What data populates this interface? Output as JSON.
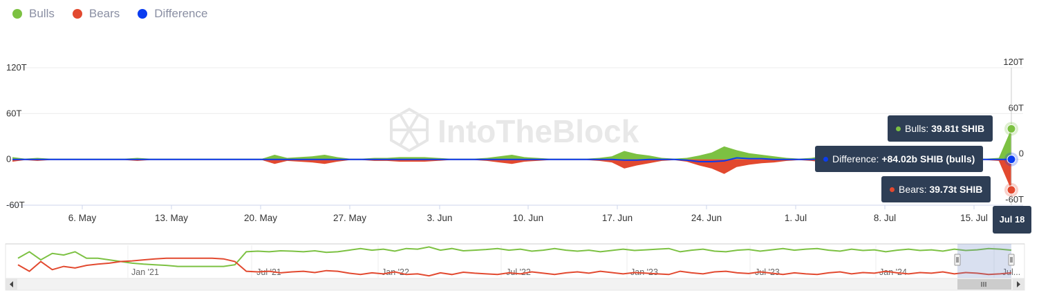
{
  "legend": [
    {
      "label": "Bulls",
      "color": "#7cc142"
    },
    {
      "label": "Bears",
      "color": "#e2492f"
    },
    {
      "label": "Difference",
      "color": "#0a3cf0"
    }
  ],
  "watermark": "IntoTheBlock",
  "chart_data": {
    "type": "area",
    "x_ticks": [
      "6. May",
      "13. May",
      "20. May",
      "27. May",
      "3. Jun",
      "10. Jun",
      "17. Jun",
      "24. Jun",
      "1. Jul",
      "8. Jul",
      "15. Jul"
    ],
    "y_ticks_left": [
      "120T",
      "60T",
      "0",
      "-60T"
    ],
    "y_ticks_right": [
      "120T",
      "60T",
      "0",
      "-60T"
    ],
    "ylim": [
      -60,
      120
    ],
    "y_unit": "T",
    "x_range": [
      "Apr 30",
      "Jul 18"
    ],
    "series": [
      {
        "name": "Bulls",
        "color": "#7cc142",
        "values": [
          3,
          1,
          2,
          1,
          1,
          1,
          1,
          1,
          1,
          1,
          2,
          1,
          1,
          1,
          1,
          1,
          1,
          1,
          1,
          1,
          1,
          6,
          2,
          3,
          4,
          6,
          3,
          1,
          1,
          2,
          2,
          3,
          3,
          3,
          2,
          1,
          1,
          1,
          2,
          4,
          6,
          3,
          2,
          1,
          1,
          1,
          1,
          2,
          4,
          11,
          7,
          5,
          2,
          1,
          2,
          5,
          9,
          17,
          12,
          8,
          6,
          4,
          2,
          1,
          2,
          5,
          6,
          3,
          2,
          1,
          1,
          3,
          6,
          3,
          2,
          1,
          1,
          1,
          1,
          2,
          40
        ]
      },
      {
        "name": "Bears",
        "color": "#e2492f",
        "values": [
          -3,
          -1,
          -2,
          -1,
          -1,
          -1,
          -1,
          -1,
          -1,
          -1,
          -2,
          -1,
          -1,
          -1,
          -1,
          -1,
          -1,
          -1,
          -1,
          -1,
          -1,
          -6,
          -2,
          -3,
          -4,
          -6,
          -3,
          -1,
          -1,
          -2,
          -2,
          -3,
          -3,
          -3,
          -2,
          -1,
          -1,
          -1,
          -2,
          -4,
          -6,
          -3,
          -2,
          -1,
          -1,
          -1,
          -1,
          -2,
          -4,
          -12,
          -8,
          -5,
          -2,
          -1,
          -3,
          -8,
          -12,
          -19,
          -10,
          -7,
          -5,
          -4,
          -2,
          -1,
          -2,
          -4,
          -5,
          -3,
          -2,
          -1,
          -1,
          -2,
          -4,
          -2,
          -1,
          -1,
          -1,
          -1,
          -1,
          -2,
          -40
        ]
      },
      {
        "name": "Difference",
        "color": "#0a3cf0",
        "values": [
          0,
          0,
          0,
          0,
          0,
          0,
          0,
          0,
          0,
          0,
          0,
          0,
          0,
          0,
          0,
          0,
          0,
          0,
          0,
          0,
          0,
          0,
          0,
          0,
          0,
          0,
          0,
          0,
          0,
          0,
          0,
          0,
          0,
          0,
          0,
          0,
          0,
          0,
          0,
          0,
          0,
          0,
          0,
          0,
          0,
          0,
          0,
          0,
          0,
          -1,
          -1,
          0,
          0,
          0,
          -1,
          -3,
          -3,
          -2,
          2,
          1,
          1,
          0,
          0,
          0,
          0,
          1,
          1,
          0,
          0,
          0,
          0,
          1,
          2,
          1,
          1,
          0,
          0,
          0,
          0,
          0,
          0.08
        ]
      }
    ],
    "navigator": {
      "x_ticks": [
        "Jan '21",
        "Jul '21",
        "Jan '22",
        "Jul '22",
        "Jan '23",
        "Jul '23",
        "Jan '24",
        "Jul..."
      ],
      "bulls": [
        0.6,
        0.8,
        0.55,
        0.75,
        0.7,
        0.8,
        0.6,
        0.6,
        0.55,
        0.5,
        0.45,
        0.42,
        0.4,
        0.38,
        0.35,
        0.35,
        0.35,
        0.35,
        0.35,
        0.4,
        0.8,
        0.82,
        0.8,
        0.83,
        0.82,
        0.8,
        0.83,
        0.78,
        0.8,
        0.85,
        0.9,
        0.85,
        0.88,
        0.82,
        0.9,
        0.88,
        0.95,
        0.85,
        0.9,
        0.83,
        0.85,
        0.87,
        0.9,
        0.85,
        0.88,
        0.82,
        0.85,
        0.9,
        0.85,
        0.82,
        0.85,
        0.8,
        0.84,
        0.88,
        0.84,
        0.86,
        0.88,
        0.9,
        0.8,
        0.85,
        0.88,
        0.82,
        0.8,
        0.85,
        0.87,
        0.82,
        0.86,
        0.9,
        0.85,
        0.88,
        0.9,
        0.85,
        0.82,
        0.88,
        0.84,
        0.86,
        0.8,
        0.85,
        0.88,
        0.84,
        0.86,
        0.82,
        0.88,
        0.84,
        0.86,
        0.9,
        0.88,
        0.85
      ],
      "bears": [
        0.4,
        0.2,
        0.5,
        0.25,
        0.35,
        0.3,
        0.38,
        0.42,
        0.45,
        0.5,
        0.52,
        0.55,
        0.58,
        0.6,
        0.6,
        0.6,
        0.6,
        0.6,
        0.58,
        0.5,
        0.2,
        0.18,
        0.2,
        0.15,
        0.18,
        0.2,
        0.16,
        0.22,
        0.2,
        0.14,
        0.1,
        0.15,
        0.12,
        0.18,
        0.1,
        0.12,
        0.06,
        0.15,
        0.1,
        0.17,
        0.14,
        0.12,
        0.1,
        0.15,
        0.12,
        0.18,
        0.14,
        0.1,
        0.15,
        0.18,
        0.14,
        0.2,
        0.16,
        0.12,
        0.16,
        0.14,
        0.12,
        0.1,
        0.2,
        0.15,
        0.12,
        0.18,
        0.2,
        0.15,
        0.13,
        0.18,
        0.14,
        0.1,
        0.15,
        0.12,
        0.1,
        0.15,
        0.18,
        0.12,
        0.16,
        0.14,
        0.2,
        0.15,
        0.12,
        0.16,
        0.14,
        0.18,
        0.12,
        0.16,
        0.14,
        0.1,
        0.12,
        0.15
      ]
    }
  },
  "tooltips": {
    "bulls_label": "Bulls: ",
    "bulls_value": "39.81t SHIB",
    "difference_label": "Difference: ",
    "difference_value": "+84.02b SHIB (bulls)",
    "bears_label": "Bears: ",
    "bears_value": "39.73t SHIB",
    "date": "Jul 18"
  }
}
